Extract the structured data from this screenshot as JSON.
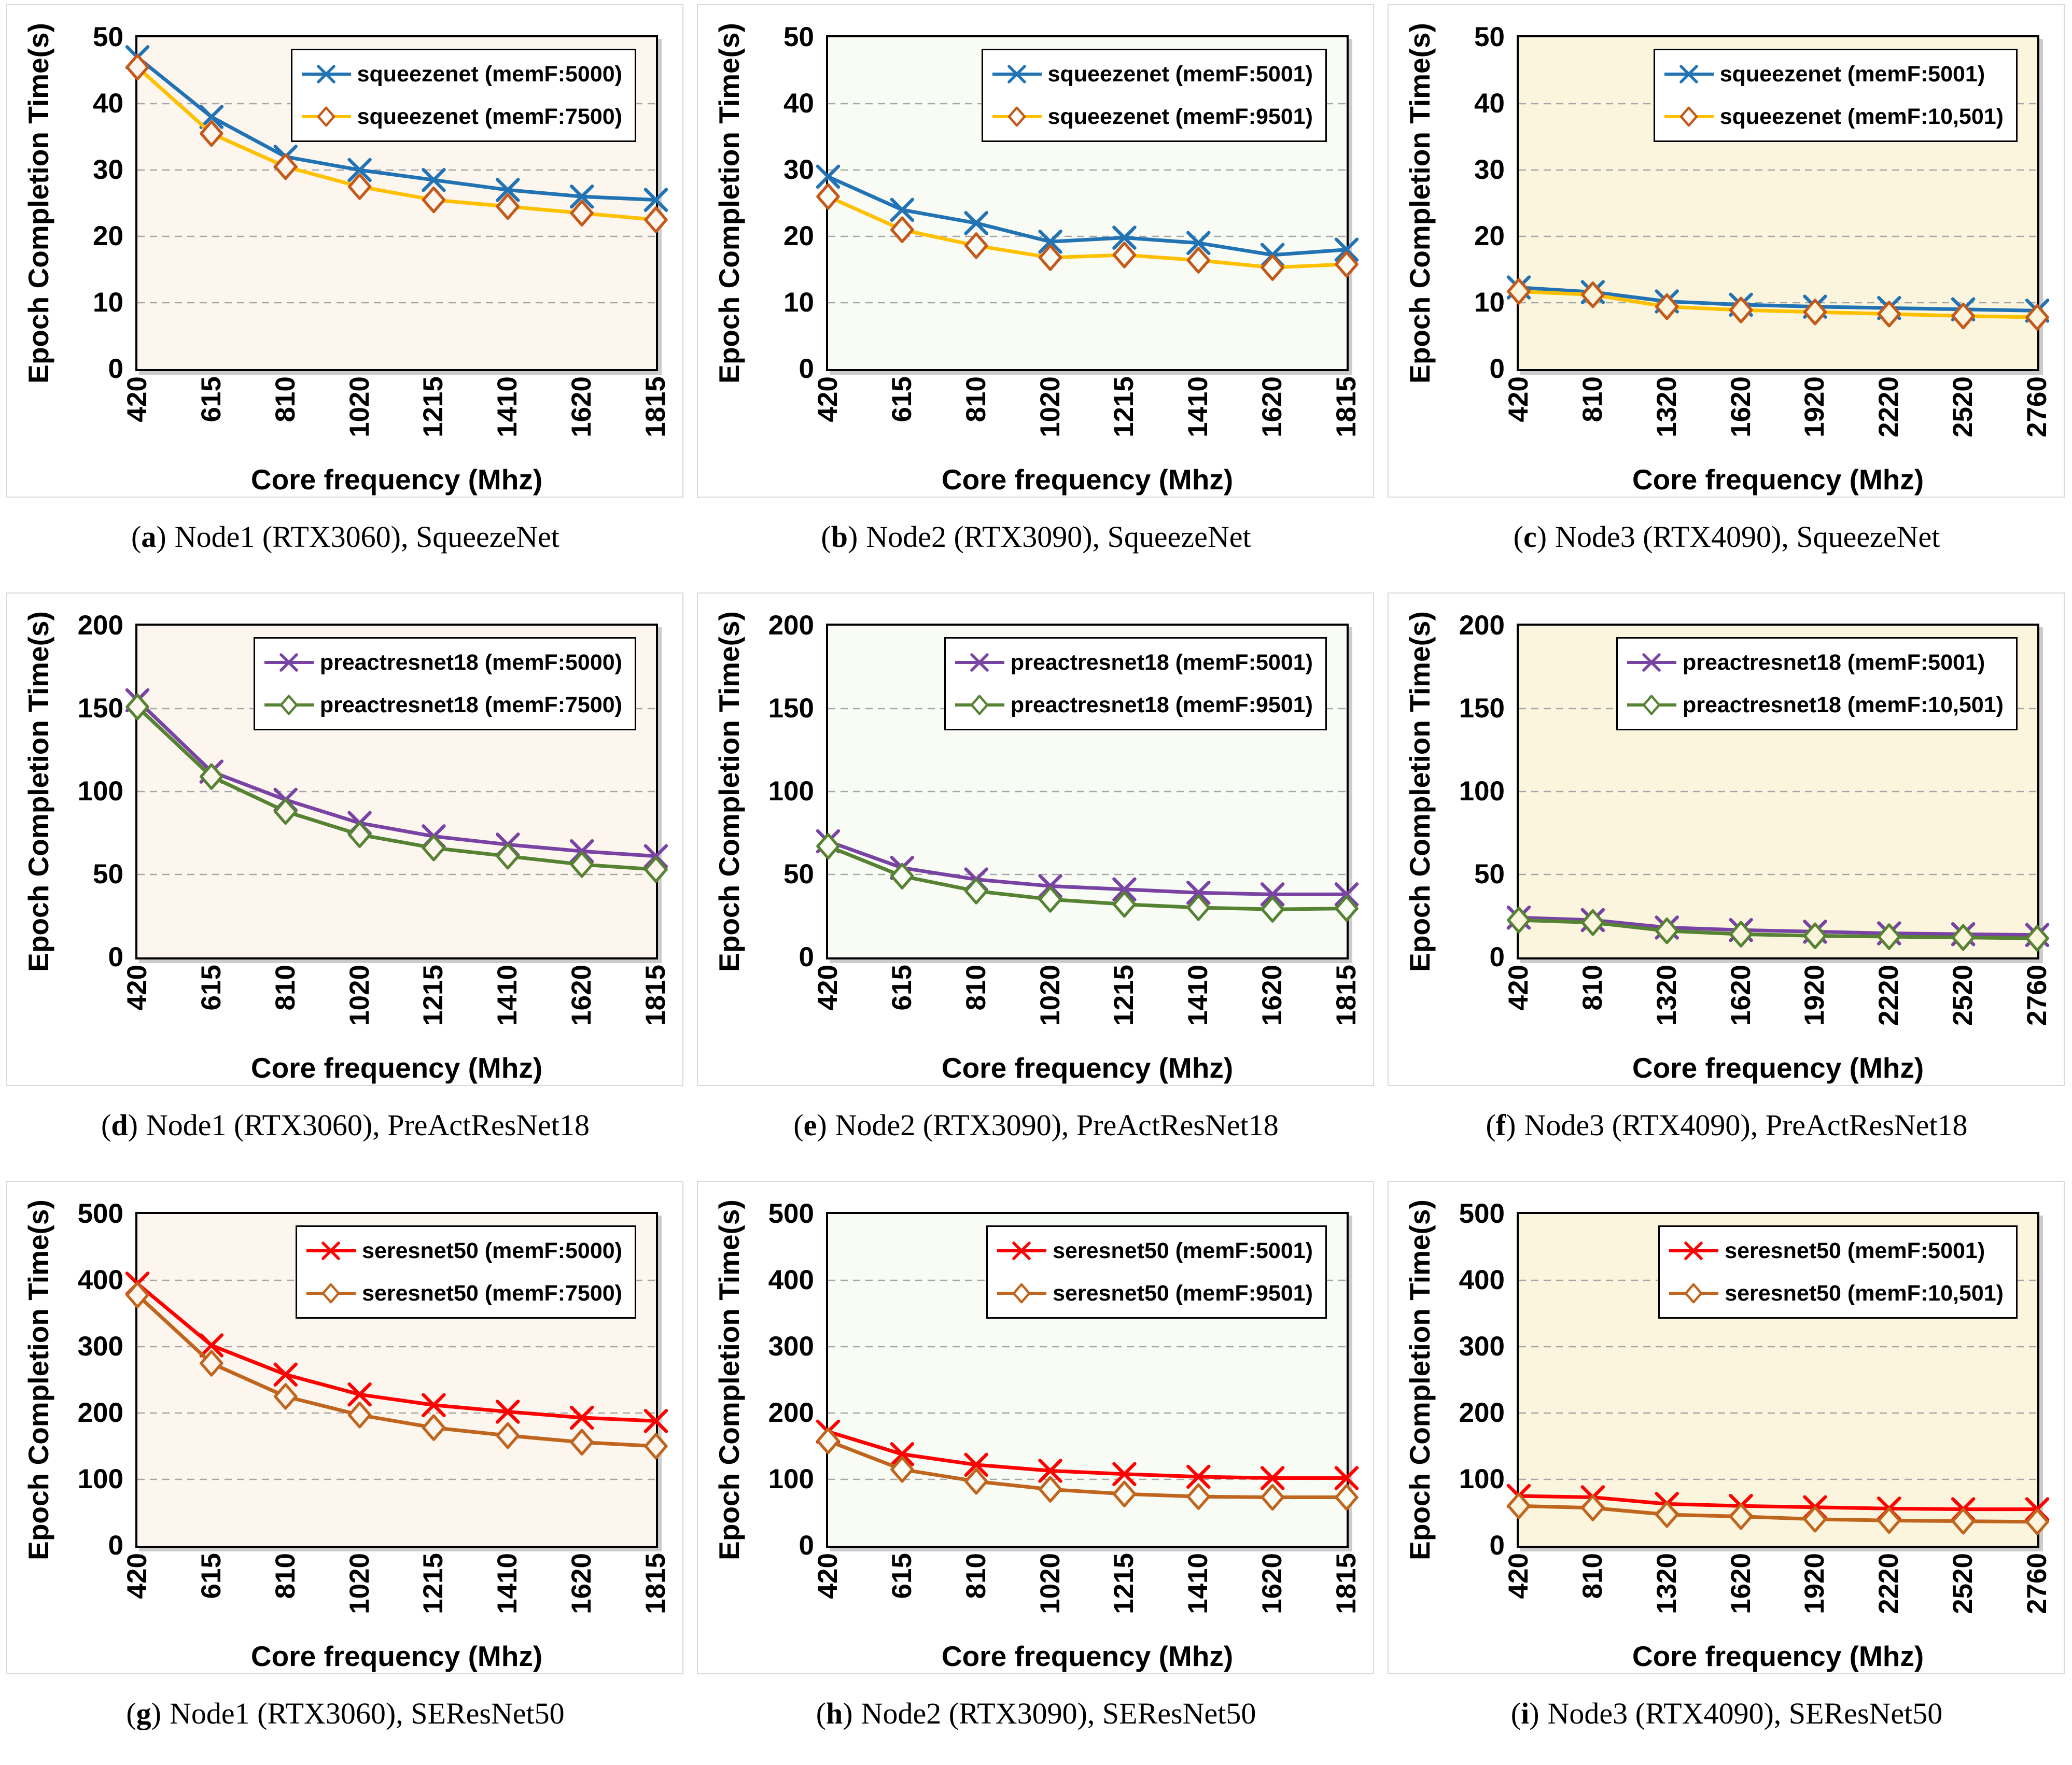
{
  "axis": {
    "y_label": "Epoch Completion Time(s)",
    "x_label": "Core frequency (Mhz)"
  },
  "punct": {
    "open": "(",
    "close": ")"
  },
  "style": {
    "gridline_color": "#a6a6a6",
    "frame_color": "#000000",
    "column_plot_backgrounds": [
      "#fcf6ef",
      "#f9fbf5",
      "#fcf5dd"
    ]
  },
  "chart_data": [
    {
      "type": "line",
      "caption_letter": "a",
      "caption_text": "Node1 (RTX3060), SqueezeNet",
      "plot_bg": "#fcf6ef",
      "ylim": [
        0,
        50
      ],
      "y_ticks": [
        0,
        10,
        20,
        30,
        40,
        50
      ],
      "grid": "horizontal-dashed",
      "legend_position": "top-right",
      "x_categories": [
        420,
        615,
        810,
        1020,
        1215,
        1410,
        1620,
        1815
      ],
      "series": [
        {
          "label": "squeezenet (memF:5000)",
          "color": "#2173b4",
          "marker": "x",
          "marker_color": "#2173b4",
          "values": [
            47,
            38,
            32,
            30,
            28.5,
            27,
            26,
            25.5
          ]
        },
        {
          "label": "squeezenet (memF:7500)",
          "color": "#ffc000",
          "marker": "diamond",
          "marker_color": "#c4591a",
          "values": [
            45.5,
            35.5,
            30.5,
            27.5,
            25.5,
            24.5,
            23.5,
            22.5
          ]
        }
      ]
    },
    {
      "type": "line",
      "caption_letter": "b",
      "caption_text": "Node2 (RTX3090), SqueezeNet",
      "plot_bg": "#f9fbf5",
      "ylim": [
        0,
        50
      ],
      "y_ticks": [
        0,
        10,
        20,
        30,
        40,
        50
      ],
      "grid": "horizontal-dashed",
      "legend_position": "top-right",
      "x_categories": [
        420,
        615,
        810,
        1020,
        1215,
        1410,
        1620,
        1815
      ],
      "series": [
        {
          "label": "squeezenet (memF:5001)",
          "color": "#2173b4",
          "marker": "x",
          "marker_color": "#2173b4",
          "values": [
            29,
            24,
            22,
            19.2,
            19.8,
            19,
            17.2,
            18
          ]
        },
        {
          "label": "squeezenet (memF:9501)",
          "color": "#ffc000",
          "marker": "diamond",
          "marker_color": "#c4591a",
          "values": [
            26,
            21,
            18.6,
            16.8,
            17.2,
            16.4,
            15.3,
            15.8
          ]
        }
      ]
    },
    {
      "type": "line",
      "caption_letter": "c",
      "caption_text": "Node3 (RTX4090), SqueezeNet",
      "plot_bg": "#fcf5dd",
      "ylim": [
        0,
        50
      ],
      "y_ticks": [
        0,
        10,
        20,
        30,
        40,
        50
      ],
      "grid": "horizontal-dashed",
      "legend_position": "top-right",
      "x_categories": [
        420,
        810,
        1320,
        1620,
        1920,
        2220,
        2520,
        2760
      ],
      "series": [
        {
          "label": "squeezenet (memF:5001)",
          "color": "#2173b4",
          "marker": "x",
          "marker_color": "#2173b4",
          "values": [
            12.3,
            11.6,
            10.2,
            9.7,
            9.4,
            9.2,
            9,
            8.8
          ]
        },
        {
          "label": "squeezenet (memF:10,501)",
          "color": "#ffc000",
          "marker": "diamond",
          "marker_color": "#c4591a",
          "values": [
            11.7,
            11.2,
            9.4,
            8.9,
            8.6,
            8.3,
            8,
            7.8
          ]
        }
      ]
    },
    {
      "type": "line",
      "caption_letter": "d",
      "caption_text": "Node1 (RTX3060), PreActResNet18",
      "plot_bg": "#fcf6ef",
      "ylim": [
        0,
        200
      ],
      "y_ticks": [
        0,
        50,
        100,
        150,
        200
      ],
      "grid": "horizontal-dashed",
      "legend_position": "top-right",
      "x_categories": [
        420,
        615,
        810,
        1020,
        1215,
        1410,
        1620,
        1815
      ],
      "series": [
        {
          "label": "preactresnet18 (memF:5000)",
          "color": "#7943a4",
          "marker": "x",
          "marker_color": "#7943a4",
          "values": [
            155,
            112,
            95,
            81,
            73,
            68,
            64,
            61
          ]
        },
        {
          "label": "preactresnet18 (memF:7500)",
          "color": "#568233",
          "marker": "diamond",
          "marker_color": "#568233",
          "values": [
            151,
            109,
            88,
            74,
            66,
            61,
            56,
            53
          ]
        }
      ]
    },
    {
      "type": "line",
      "caption_letter": "e",
      "caption_text": "Node2 (RTX3090), PreActResNet18",
      "plot_bg": "#f9fbf5",
      "ylim": [
        0,
        200
      ],
      "y_ticks": [
        0,
        50,
        100,
        150,
        200
      ],
      "grid": "horizontal-dashed",
      "legend_position": "top-right",
      "x_categories": [
        420,
        615,
        810,
        1020,
        1215,
        1410,
        1620,
        1815
      ],
      "series": [
        {
          "label": "preactresnet18 (memF:5001)",
          "color": "#7943a4",
          "marker": "x",
          "marker_color": "#7943a4",
          "values": [
            70,
            54,
            47,
            43,
            41,
            39,
            38,
            38
          ]
        },
        {
          "label": "preactresnet18 (memF:9501)",
          "color": "#568233",
          "marker": "diamond",
          "marker_color": "#568233",
          "values": [
            67,
            49,
            40,
            35,
            32,
            30,
            29,
            29.5
          ]
        }
      ]
    },
    {
      "type": "line",
      "caption_letter": "f",
      "caption_text": "Node3 (RTX4090), PreActResNet18",
      "plot_bg": "#fcf5dd",
      "ylim": [
        0,
        200
      ],
      "y_ticks": [
        0,
        50,
        100,
        150,
        200
      ],
      "grid": "horizontal-dashed",
      "legend_position": "top-right",
      "x_categories": [
        420,
        810,
        1320,
        1620,
        1920,
        2220,
        2520,
        2760
      ],
      "series": [
        {
          "label": "preactresnet18 (memF:5001)",
          "color": "#7943a4",
          "marker": "x",
          "marker_color": "#7943a4",
          "values": [
            24,
            22.5,
            18,
            16.5,
            15.5,
            14.5,
            14,
            13.5
          ]
        },
        {
          "label": "preactresnet18 (memF:10,501)",
          "color": "#568233",
          "marker": "diamond",
          "marker_color": "#568233",
          "values": [
            22.5,
            21,
            16,
            14,
            13,
            12.5,
            12,
            11.5
          ]
        }
      ]
    },
    {
      "type": "line",
      "caption_letter": "g",
      "caption_text": "Node1 (RTX3060), SEResNet50",
      "plot_bg": "#fcf6ef",
      "ylim": [
        0,
        500
      ],
      "y_ticks": [
        0,
        100,
        200,
        300,
        400,
        500
      ],
      "grid": "horizontal-dashed",
      "legend_position": "top-right",
      "x_categories": [
        420,
        615,
        810,
        1020,
        1215,
        1410,
        1620,
        1815
      ],
      "series": [
        {
          "label": "seresnet50 (memF:5000)",
          "color": "#ff0000",
          "marker": "x",
          "marker_color": "#ff0000",
          "values": [
            395,
            302,
            258,
            228,
            212,
            202,
            193,
            188
          ]
        },
        {
          "label": "seresnet50 (memF:7500)",
          "color": "#c0651d",
          "marker": "diamond",
          "marker_color": "#c0651d",
          "values": [
            378,
            275,
            225,
            197,
            178,
            166,
            156,
            150
          ]
        }
      ]
    },
    {
      "type": "line",
      "caption_letter": "h",
      "caption_text": "Node2 (RTX3090), SEResNet50",
      "plot_bg": "#f9fbf5",
      "ylim": [
        0,
        500
      ],
      "y_ticks": [
        0,
        100,
        200,
        300,
        400,
        500
      ],
      "grid": "horizontal-dashed",
      "legend_position": "top-right",
      "x_categories": [
        420,
        615,
        810,
        1020,
        1215,
        1410,
        1620,
        1815
      ],
      "series": [
        {
          "label": "seresnet50 (memF:5001)",
          "color": "#ff0000",
          "marker": "x",
          "marker_color": "#ff0000",
          "values": [
            172,
            138,
            122,
            113,
            108,
            104,
            102,
            102
          ]
        },
        {
          "label": "seresnet50 (memF:9501)",
          "color": "#c0651d",
          "marker": "diamond",
          "marker_color": "#c0651d",
          "values": [
            158,
            115,
            97,
            85,
            78,
            74,
            73,
            73
          ]
        }
      ]
    },
    {
      "type": "line",
      "caption_letter": "i",
      "caption_text": "Node3 (RTX4090), SEResNet50",
      "plot_bg": "#fcf5dd",
      "ylim": [
        0,
        500
      ],
      "y_ticks": [
        0,
        100,
        200,
        300,
        400,
        500
      ],
      "grid": "horizontal-dashed",
      "legend_position": "top-right",
      "x_categories": [
        420,
        810,
        1320,
        1620,
        1920,
        2220,
        2520,
        2760
      ],
      "series": [
        {
          "label": "seresnet50 (memF:5001)",
          "color": "#ff0000",
          "marker": "x",
          "marker_color": "#ff0000",
          "values": [
            75,
            73,
            63,
            60,
            58,
            56,
            55,
            55
          ]
        },
        {
          "label": "seresnet50 (memF:10,501)",
          "color": "#c0651d",
          "marker": "diamond",
          "marker_color": "#c0651d",
          "values": [
            60,
            57,
            47,
            44,
            40,
            38,
            37,
            36
          ]
        }
      ]
    }
  ]
}
